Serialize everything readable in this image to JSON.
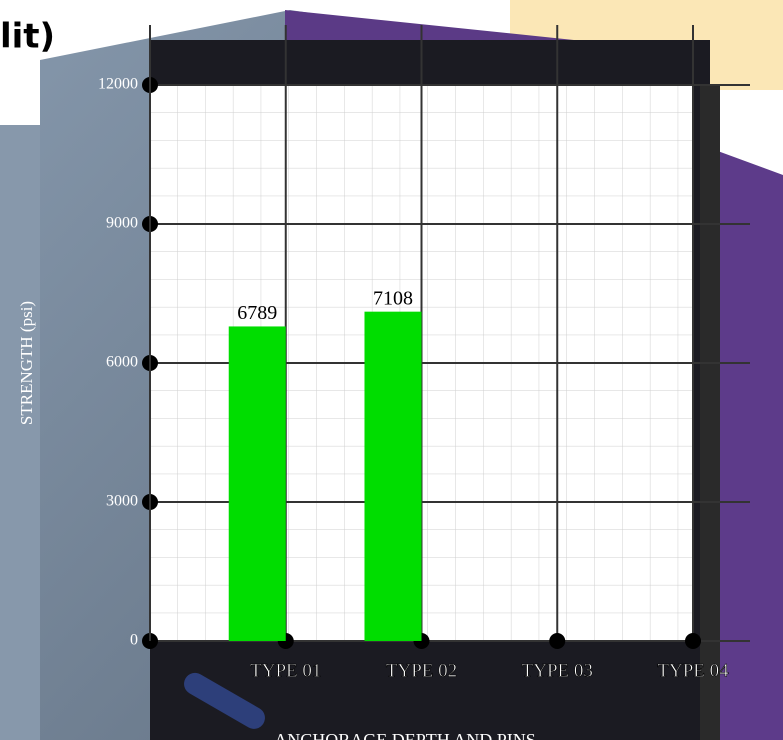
{
  "chart_data": {
    "type": "bar",
    "title": "lit)",
    "x_label": "ANCHORAGE DEPTH AND PINS",
    "y_label": "STRENGTH (psi)",
    "categories": [
      "TYPE 01",
      "TYPE 02",
      "TYPE 03",
      "TYPE 04"
    ],
    "values": [
      6789,
      7108,
      null,
      null
    ],
    "color": "#00dd00",
    "ylim": [
      0,
      12000
    ],
    "yticks": [
      0,
      3000,
      6000,
      9000,
      12000
    ],
    "grid": true
  }
}
